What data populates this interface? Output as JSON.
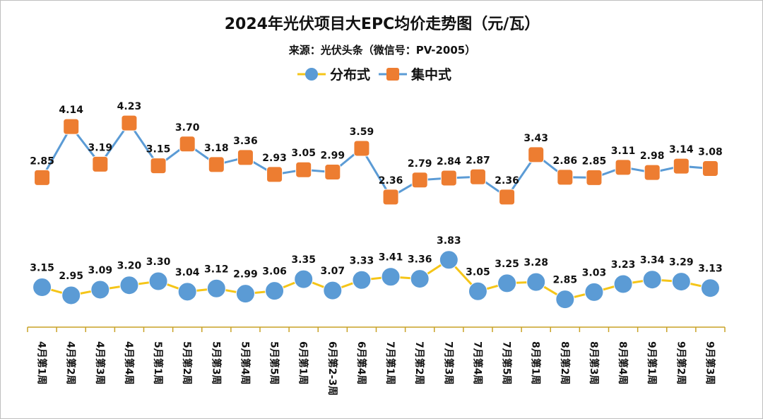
{
  "chart_data": {
    "type": "line",
    "title": "2024年光伏项目大EPC均价走势图（元/瓦）",
    "subtitle": "来源：光伏头条（微信号：PV-2005）",
    "categories": [
      "4月第1周",
      "4月第2周",
      "4月第3周",
      "4月第4周",
      "5月第1周",
      "5月第2周",
      "5月第3周",
      "5月第4周",
      "5月第5周",
      "6月第1周",
      "6月第2-3周",
      "6月第4周",
      "7月第1周",
      "7月第2周",
      "7月第3周",
      "7月第4周",
      "7月第5周",
      "8月第1周",
      "8月第2周",
      "8月第3周",
      "8月第4周",
      "9月第1周",
      "9月第2周",
      "9月第3周"
    ],
    "series": [
      {
        "name": "分布式",
        "values": [
          3.15,
          2.95,
          3.09,
          3.2,
          3.3,
          3.04,
          3.12,
          2.99,
          3.06,
          3.35,
          3.07,
          3.33,
          3.41,
          3.36,
          3.83,
          3.05,
          3.25,
          3.28,
          2.85,
          3.03,
          3.23,
          3.34,
          3.29,
          3.13
        ]
      },
      {
        "name": "集中式",
        "values": [
          2.85,
          4.14,
          3.19,
          4.23,
          3.15,
          3.7,
          3.18,
          3.36,
          2.93,
          3.05,
          2.99,
          3.59,
          2.36,
          2.79,
          2.84,
          2.87,
          2.36,
          3.43,
          2.86,
          2.85,
          3.11,
          2.98,
          3.14,
          3.08
        ]
      }
    ],
    "legend_position": "top-center",
    "grid": false,
    "colors": {
      "分布式": {
        "line": "#f5c518",
        "marker": "#5b9bd5"
      },
      "集中式": {
        "line": "#5b9bd5",
        "marker": "#ed7d31"
      },
      "axis": "#c9a227"
    }
  }
}
